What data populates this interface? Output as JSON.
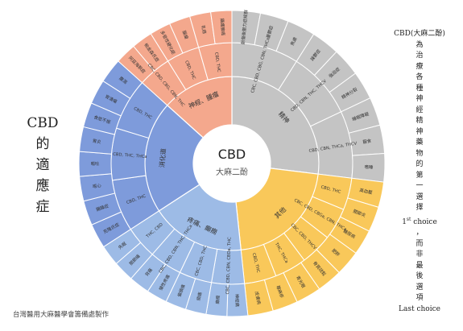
{
  "left_title": [
    "CBD",
    "的",
    "適",
    "應",
    "症"
  ],
  "center": {
    "title": "CBD",
    "subtitle": "大麻二酚"
  },
  "right_note": {
    "line1": "CBD(大麻二酚)",
    "vertical": [
      "為",
      "治",
      "療",
      "各",
      "種",
      "神",
      "經",
      "精",
      "神",
      "藥",
      "物",
      "的",
      "第",
      "一",
      "選",
      "擇"
    ],
    "first_choice_num": "1",
    "first_choice_sup": "st",
    "first_choice_word": " choice",
    "comma": "，",
    "vertical2": [
      "而",
      "非",
      "最",
      "後",
      "選",
      "項"
    ],
    "last": "Last choice"
  },
  "credit": "台灣醫用大麻醫學會籌備處製作",
  "colors": {
    "gray": "#c4c4c4",
    "yellow": "#f9c85a",
    "blue_light": "#9dbbe6",
    "blue_dark": "#7e9bdb",
    "orange": "#f4a88d",
    "center": "#ffffff"
  },
  "sectors": [
    {
      "name": "精神",
      "color": "#c4c4c4",
      "mid": [
        {
          "label": "CBC, CBD, CBG, CBN, THCa"
        },
        {
          "label": "CBD, CBN, THC, THCV"
        },
        {
          "label": "CBD, CBN, THCa, THCV"
        }
      ],
      "outer": [
        "創傷後壓力症候群",
        "憂鬱症",
        "焦慮",
        "躁鬱症",
        "強迫症",
        "精神分裂",
        "睡眠障礙",
        "厭食",
        "嗜睡"
      ]
    },
    {
      "name": "其他",
      "color": "#f9c85a",
      "mid": [
        {
          "label": "CBD, THC"
        },
        {
          "label": "CBC, CBD, CBGa, CBN, THCa"
        },
        {
          "label": "CBC, CBD, THCV"
        },
        {
          "label": "THC, THCa"
        },
        {
          "label": "CBD, THC"
        }
      ],
      "outer": [
        "高血壓",
        "關節炎",
        "糖尿病",
        "肥胖",
        "骨質疏鬆",
        "青光眼",
        "蕁麻疹",
        "皮膚病"
      ]
    },
    {
      "name": "疼痛、癲癇",
      "color": "#9dbbe6",
      "mid": [
        {
          "label": "CBC, CBD, CBN, CBDa, THC"
        },
        {
          "label": "CBC, CBD, THC"
        },
        {
          "label": "CBC, CBD, CBN, THC, THCa"
        },
        {
          "label": "THC, CBD"
        }
      ],
      "outer": [
        "神經痛",
        "癲癇",
        "頭痛",
        "偏頭痛",
        "慢性疼痛",
        "背痛",
        "關節痛",
        "失眠"
      ]
    },
    {
      "name": "消化道",
      "color": "#7e9bdb",
      "mid": [
        {
          "label": "CBD, THC"
        },
        {
          "label": "CBD, THC, THCa"
        },
        {
          "label": "CBD, THC"
        }
      ],
      "outer": [
        "克隆氏症",
        "腸躁症",
        "噁心",
        "嘔吐",
        "胃炎",
        "食慾不振",
        "胃潰瘍",
        "腹瀉"
      ]
    },
    {
      "name": "神經、腫瘤",
      "color": "#f4a88d",
      "mid": [
        {
          "label": "CBC, CBD, CBG, CBN, THC"
        },
        {
          "label": "CBD, THC"
        },
        {
          "label": "CBD, THC"
        }
      ],
      "outer": [
        "阿茲海默症",
        "帕金森氏症",
        "多發性硬化症",
        "腦瘤",
        "乳癌",
        "攝護腺癌"
      ]
    }
  ]
}
